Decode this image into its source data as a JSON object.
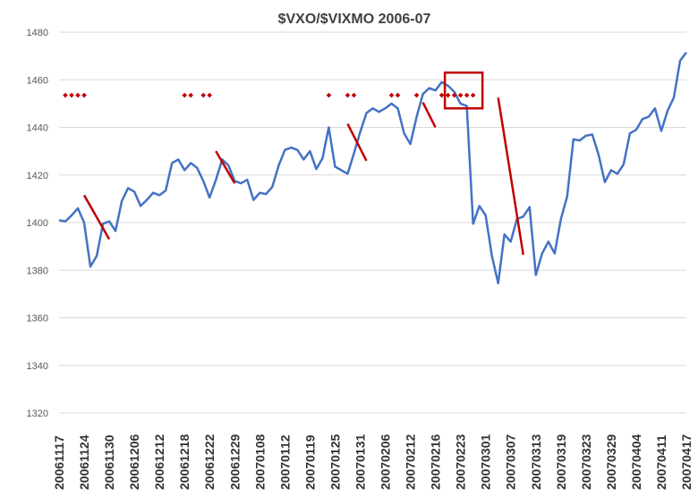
{
  "chart_data": {
    "type": "line",
    "title": "$VXO/$VIXMO 2006-07",
    "xlabel": "",
    "ylabel": "",
    "ylim": [
      1320,
      1480
    ],
    "ytick_step": 20,
    "yticks": [
      "1320",
      "1340",
      "1360",
      "1380",
      "1400",
      "1420",
      "1440",
      "1460",
      "1480"
    ],
    "xtick_labels": [
      "20061117",
      "20061124",
      "20061130",
      "20061206",
      "20061212",
      "20061218",
      "20061222",
      "20061229",
      "20070108",
      "20070112",
      "20070119",
      "20070125",
      "20070131",
      "20070206",
      "20070212",
      "20070216",
      "20070223",
      "20070301",
      "20070307",
      "20070313",
      "20070319",
      "20070323",
      "20070329",
      "20070404",
      "20070411",
      "20070417"
    ],
    "xtick_every": 4,
    "grid": true,
    "legend": "none",
    "series": [
      {
        "values": [
          1401,
          1400.5,
          1403,
          1406,
          1400,
          1381.5,
          1386,
          1399.5,
          1400.5,
          1396.5,
          1409,
          1414.5,
          1413,
          1407,
          1409.5,
          1412.5,
          1411.5,
          1413.5,
          1425,
          1426.5,
          1422,
          1425,
          1423,
          1417.5,
          1410.5,
          1418,
          1426.5,
          1424,
          1417.5,
          1416.5,
          1418,
          1409.5,
          1412.5,
          1412,
          1415,
          1424,
          1430.5,
          1431.5,
          1430.5,
          1426.5,
          1430,
          1422.5,
          1427,
          1440,
          1423.5,
          1422,
          1420.5,
          1429,
          1438,
          1446,
          1448,
          1446.5,
          1448,
          1450,
          1448,
          1437.5,
          1433,
          1444.5,
          1454,
          1456.5,
          1455.5,
          1459,
          1457.5,
          1455,
          1450,
          1449,
          1399.5,
          1407,
          1403,
          1386,
          1374.5,
          1395,
          1392,
          1401.5,
          1402.5,
          1406.5,
          1378,
          1387,
          1392,
          1387,
          1401.5,
          1411,
          1435,
          1434.5,
          1436.5,
          1437,
          1428.5,
          1417,
          1422,
          1420.5,
          1424.5,
          1437.5,
          1439,
          1443.5,
          1444.5,
          1448,
          1438.5,
          1447,
          1452.5,
          1468,
          1471.5
        ]
      }
    ],
    "colors": {
      "line": "#4472c4",
      "annotation": "#c00000",
      "grid": "#d9d9d9"
    },
    "annotations": {
      "dot_y": 1453.5,
      "dot_groups": [
        [
          1,
          2,
          3,
          4
        ],
        [
          20,
          21,
          23,
          24
        ],
        [
          43,
          46,
          47
        ],
        [
          53,
          54,
          57
        ],
        [
          61,
          62,
          63,
          64,
          65,
          66
        ]
      ],
      "trend_lines": [
        {
          "x": [
            4,
            8
          ],
          "y": [
            1411.5,
            1393
          ]
        },
        {
          "x": [
            25,
            28
          ],
          "y": [
            1430,
            1416.5
          ]
        },
        {
          "x": [
            46,
            49
          ],
          "y": [
            1441.5,
            1426
          ]
        },
        {
          "x": [
            58,
            60
          ],
          "y": [
            1450.5,
            1440
          ]
        },
        {
          "x": [
            70,
            74
          ],
          "y": [
            1452.5,
            1386.5
          ]
        }
      ],
      "highlight_box": {
        "x": [
          61.5,
          67.5
        ],
        "y": [
          1448,
          1463
        ]
      }
    }
  }
}
